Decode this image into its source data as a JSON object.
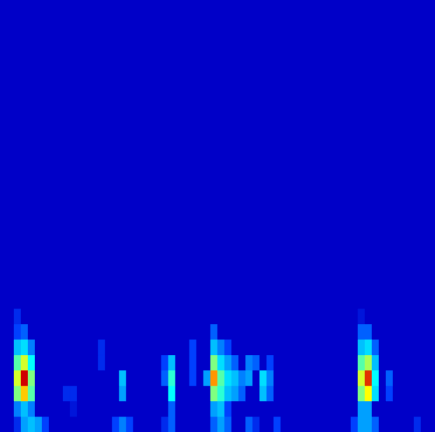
{
  "chart_data": {
    "type": "heatmap",
    "xlim": [
      0,
      62
    ],
    "ylim": [
      0,
      28
    ],
    "y_bins": [
      0,
      1,
      2,
      3,
      4,
      5,
      6,
      7,
      8,
      28
    ],
    "zlim": [
      0,
      1
    ],
    "tick_labels": false,
    "cells": [
      [
        0,
        0,
        0.1,
        0.3,
        0.35,
        0.3,
        0.15,
        0,
        0,
        0,
        0,
        0,
        0,
        0,
        0,
        0,
        0.15,
        0.25,
        0.15,
        0,
        0,
        0,
        0,
        0.1,
        0.2,
        0,
        0,
        0,
        0,
        0,
        0.2,
        0.3,
        0.2,
        0,
        0,
        0.2,
        0.1,
        0,
        0,
        0.15,
        0,
        0,
        0,
        0,
        0,
        0,
        0,
        0,
        0,
        0,
        0.15,
        0.3,
        0.3,
        0.2,
        0,
        0,
        0,
        0,
        0,
        0.1,
        0,
        0
      ],
      [
        0,
        0,
        0.25,
        0.35,
        0.25,
        0,
        0,
        0,
        0,
        0,
        0.05,
        0,
        0,
        0,
        0,
        0,
        0,
        0,
        0,
        0,
        0,
        0,
        0,
        0,
        0.2,
        0,
        0,
        0,
        0,
        0,
        0.3,
        0.35,
        0.15,
        0,
        0,
        0,
        0,
        0,
        0,
        0,
        0,
        0,
        0,
        0,
        0,
        0,
        0,
        0,
        0,
        0,
        0,
        0.3,
        0.3,
        0,
        0,
        0,
        0,
        0,
        0,
        0,
        0,
        0
      ],
      [
        0,
        0,
        0.6,
        0.8,
        0.55,
        0,
        0,
        0,
        0,
        0.1,
        0.1,
        0,
        0,
        0,
        0,
        0,
        0,
        0.3,
        0,
        0,
        0,
        0,
        0,
        0,
        0.45,
        0,
        0,
        0,
        0,
        0,
        0.6,
        0.5,
        0.35,
        0.3,
        0.2,
        0,
        0,
        0.35,
        0.2,
        0,
        0,
        0,
        0,
        0,
        0,
        0,
        0,
        0,
        0,
        0,
        0,
        0.6,
        0.75,
        0.4,
        0,
        0.15,
        0,
        0,
        0,
        0,
        0,
        0
      ],
      [
        0,
        0,
        0.7,
        1,
        0.6,
        0,
        0,
        0,
        0,
        0,
        0,
        0,
        0,
        0,
        0,
        0,
        0,
        0.35,
        0,
        0,
        0,
        0,
        0,
        0.2,
        0.5,
        0,
        0,
        0.15,
        0,
        0.3,
        0.85,
        0.55,
        0.4,
        0.35,
        0.25,
        0.3,
        0,
        0.4,
        0.25,
        0,
        0,
        0,
        0,
        0,
        0,
        0,
        0,
        0,
        0,
        0,
        0,
        0.7,
        0.95,
        0.45,
        0,
        0.2,
        0,
        0,
        0,
        0,
        0,
        0
      ],
      [
        0,
        0,
        0.55,
        0.7,
        0.45,
        0,
        0,
        0,
        0,
        0,
        0,
        0,
        0,
        0,
        0.1,
        0,
        0,
        0,
        0,
        0,
        0,
        0,
        0,
        0.15,
        0.35,
        0,
        0,
        0.15,
        0,
        0,
        0.6,
        0.4,
        0.3,
        0.2,
        0,
        0.25,
        0.2,
        0,
        0.15,
        0,
        0,
        0,
        0,
        0,
        0,
        0,
        0,
        0,
        0,
        0,
        0,
        0.55,
        0.65,
        0.35,
        0,
        0,
        0,
        0,
        0,
        0,
        0,
        0
      ],
      [
        0,
        0,
        0.35,
        0.4,
        0.25,
        0,
        0,
        0,
        0,
        0,
        0,
        0,
        0,
        0,
        0.1,
        0,
        0,
        0,
        0,
        0,
        0,
        0,
        0,
        0,
        0,
        0,
        0,
        0.15,
        0,
        0,
        0.35,
        0.25,
        0.15,
        0,
        0,
        0,
        0,
        0,
        0,
        0,
        0,
        0,
        0,
        0,
        0,
        0,
        0,
        0,
        0,
        0,
        0,
        0.35,
        0.4,
        0.2,
        0,
        0,
        0,
        0,
        0,
        0,
        0,
        0
      ],
      [
        0,
        0,
        0.15,
        0.2,
        0,
        0,
        0,
        0,
        0,
        0,
        0,
        0,
        0,
        0,
        0,
        0,
        0,
        0,
        0,
        0,
        0,
        0,
        0,
        0,
        0,
        0,
        0,
        0,
        0,
        0,
        0.2,
        0,
        0,
        0,
        0,
        0,
        0,
        0,
        0,
        0,
        0,
        0,
        0,
        0,
        0,
        0,
        0,
        0,
        0,
        0,
        0,
        0.2,
        0.2,
        0,
        0,
        0,
        0,
        0,
        0,
        0,
        0,
        0
      ],
      [
        0,
        0,
        0.1,
        0,
        0,
        0,
        0,
        0,
        0,
        0,
        0,
        0,
        0,
        0,
        0,
        0,
        0,
        0,
        0,
        0,
        0,
        0,
        0,
        0,
        0,
        0,
        0,
        0,
        0,
        0,
        0,
        0,
        0,
        0,
        0,
        0,
        0,
        0,
        0,
        0,
        0,
        0,
        0,
        0,
        0,
        0,
        0,
        0,
        0,
        0,
        0,
        0.05,
        0,
        0,
        0,
        0,
        0,
        0,
        0,
        0,
        0,
        0
      ],
      [
        0,
        0,
        0,
        0,
        0,
        0,
        0,
        0,
        0,
        0,
        0,
        0,
        0,
        0,
        0,
        0,
        0,
        0,
        0,
        0,
        0,
        0,
        0,
        0,
        0,
        0,
        0,
        0,
        0,
        0,
        0,
        0,
        0,
        0,
        0,
        0,
        0,
        0,
        0,
        0,
        0,
        0,
        0,
        0,
        0,
        0,
        0,
        0,
        0,
        0,
        0,
        0,
        0,
        0,
        0,
        0,
        0,
        0,
        0,
        0,
        0,
        0
      ]
    ]
  }
}
